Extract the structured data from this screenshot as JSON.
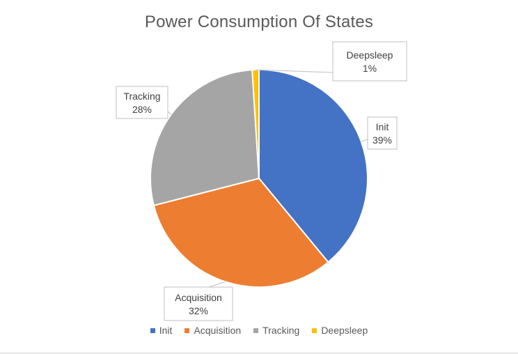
{
  "chart_data": {
    "type": "pie",
    "title": "Power Consumption Of States",
    "categories": [
      "Init",
      "Acquisition",
      "Tracking",
      "Deepsleep"
    ],
    "values": [
      39,
      32,
      28,
      1
    ],
    "unit": "%",
    "colors": [
      "#4472c4",
      "#ed7d31",
      "#a5a5a5",
      "#ffc000"
    ],
    "data_labels": [
      {
        "name": "Init",
        "value": "39%"
      },
      {
        "name": "Acquisition",
        "value": "32%"
      },
      {
        "name": "Tracking",
        "value": "28%"
      },
      {
        "name": "Deepsleep",
        "value": "1%"
      }
    ],
    "legend": {
      "position": "bottom",
      "items": [
        "Init",
        "Acquisition",
        "Tracking",
        "Deepsleep"
      ]
    }
  }
}
